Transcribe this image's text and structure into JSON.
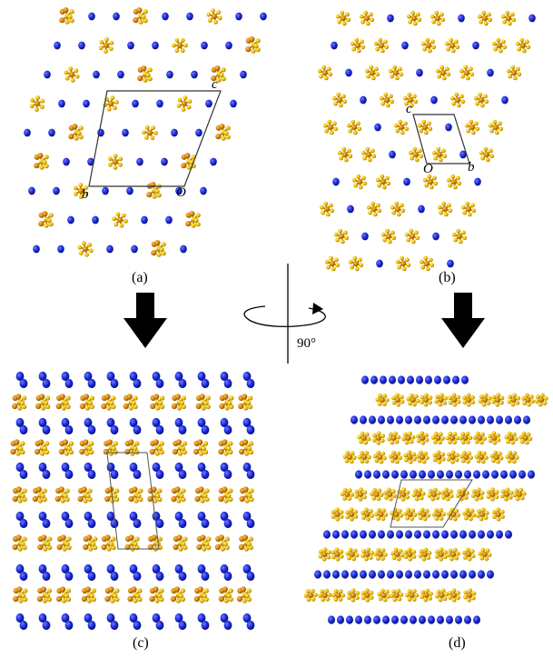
{
  "panels": {
    "a": {
      "label": "(a)",
      "axes": {
        "c": "c",
        "b": "b",
        "origin": "O"
      }
    },
    "b": {
      "label": "(b)",
      "axes": {
        "c": "c",
        "b": "b",
        "origin": "O"
      }
    },
    "c": {
      "label": "(c)"
    },
    "d": {
      "label": "(d)"
    }
  },
  "rotation": {
    "angle": "90°"
  },
  "colors": {
    "nitrogen_blue": "#1020c8",
    "anion_gold": "#e8b800",
    "anion_orange": "#d08000",
    "cell_line": "#333333",
    "arrow": "#000000"
  }
}
